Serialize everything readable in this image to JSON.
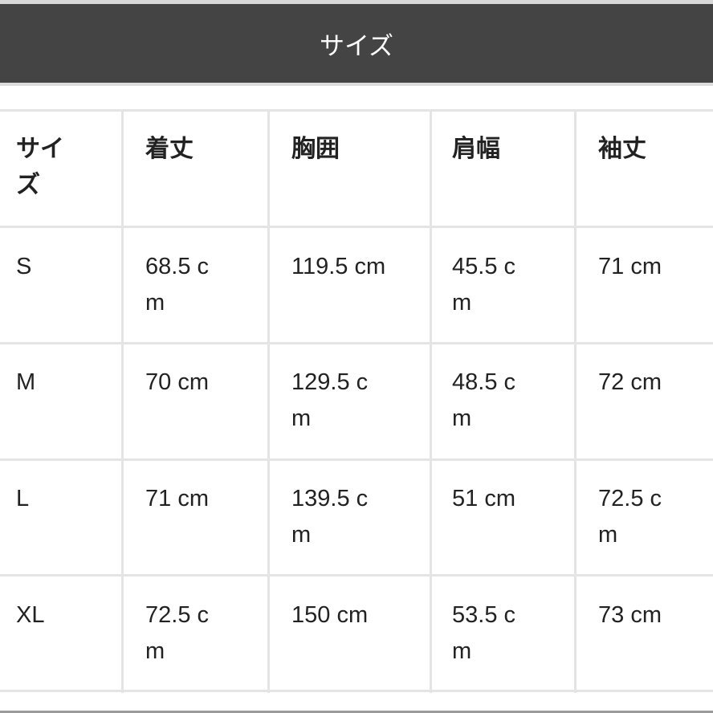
{
  "header": {
    "title": "サイズ"
  },
  "table": {
    "columns": [
      "サイ\nズ",
      "着丈",
      "胸囲",
      "肩幅",
      "袖丈"
    ],
    "rows": [
      [
        "S",
        "68.5 c\nm",
        "119.5 cm",
        "45.5 c\nm",
        "71 cm"
      ],
      [
        "M",
        "70 cm",
        "129.5 c\nm",
        "48.5 c\nm",
        "72 cm"
      ],
      [
        "L",
        "71 cm",
        "139.5 c\nm",
        "51 cm",
        "72.5 c\nm"
      ],
      [
        "XL",
        "72.5 c\nm",
        "150 cm",
        "53.5 c\nm",
        "73 cm"
      ]
    ]
  }
}
